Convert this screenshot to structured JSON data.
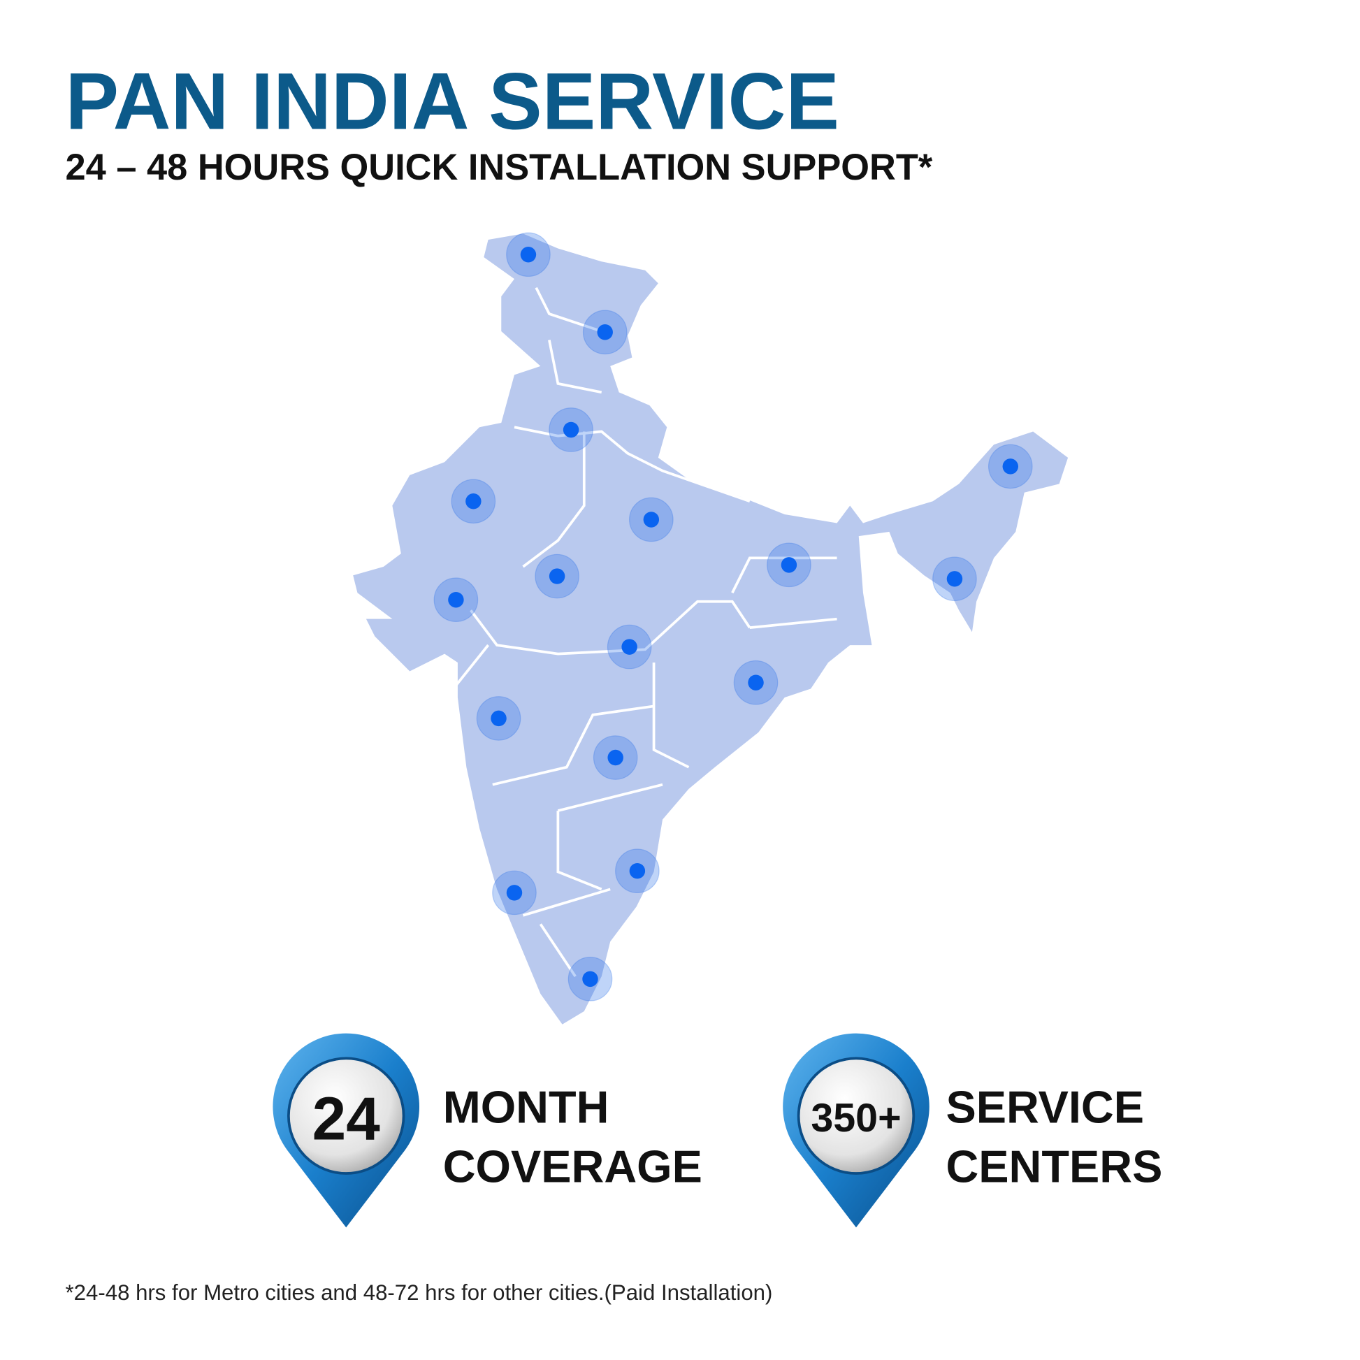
{
  "header": {
    "title": "PAN INDIA SERVICE",
    "subtitle": "24 – 48 HOURS QUICK INSTALLATION SUPPORT*"
  },
  "badges": [
    {
      "number": "24",
      "label_lines": [
        "MONTH",
        "COVERAGE"
      ]
    },
    {
      "number": "350+",
      "label_lines": [
        "SERVICE",
        "CENTERS"
      ]
    }
  ],
  "footnote": "*24-48 hrs for Metro cities and 48-72 hrs for other cities.(Paid Installation)"
}
